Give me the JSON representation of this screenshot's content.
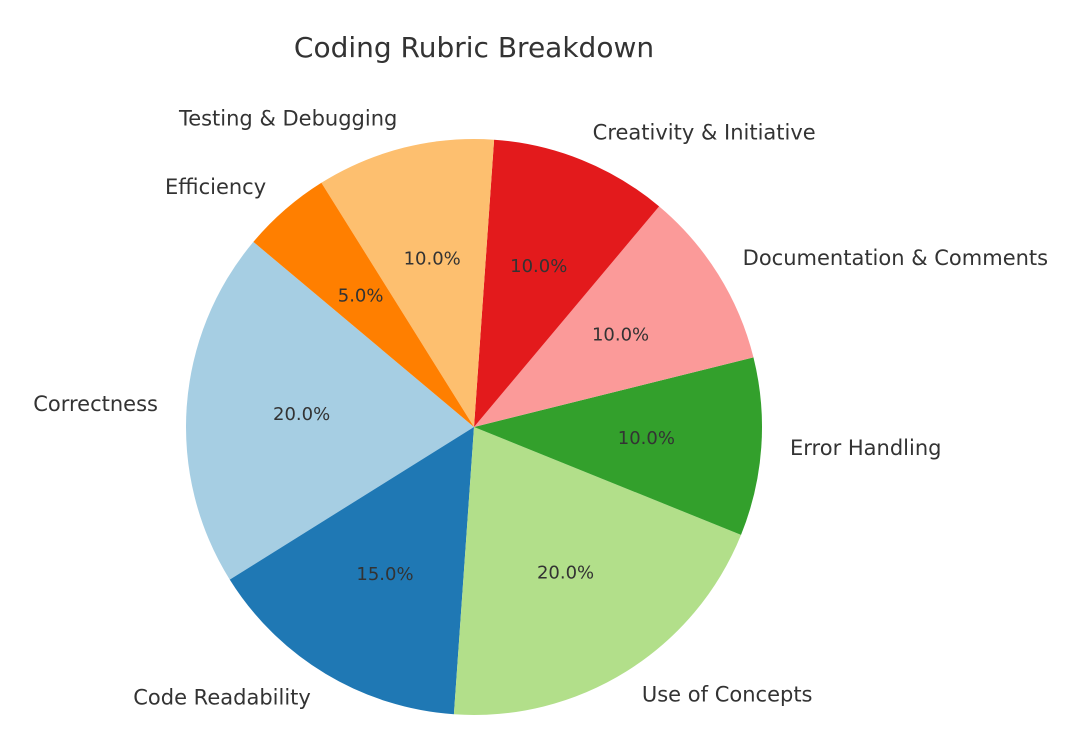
{
  "chart_data": {
    "type": "pie",
    "title": "Coding Rubric Breakdown",
    "slices": [
      {
        "label": "Correctness",
        "value": 20.0,
        "color": "#a6cee3"
      },
      {
        "label": "Code Readability",
        "value": 15.0,
        "color": "#1f78b4"
      },
      {
        "label": "Use of Concepts",
        "value": 20.0,
        "color": "#b2df8a"
      },
      {
        "label": "Error Handling",
        "value": 10.0,
        "color": "#33a02c"
      },
      {
        "label": "Documentation & Comments",
        "value": 10.0,
        "color": "#fb9a99"
      },
      {
        "label": "Creativity & Initiative",
        "value": 10.0,
        "color": "#e31a1c"
      },
      {
        "label": "Testing & Debugging",
        "value": 10.0,
        "color": "#fdbf6f"
      },
      {
        "label": "Efficiency",
        "value": 5.0,
        "color": "#ff7f00"
      }
    ],
    "percent_labels": [
      "20.0%",
      "15.0%",
      "20.0%",
      "10.0%",
      "10.0%",
      "10.0%",
      "10.0%",
      "5.0%"
    ],
    "legend": "none"
  }
}
